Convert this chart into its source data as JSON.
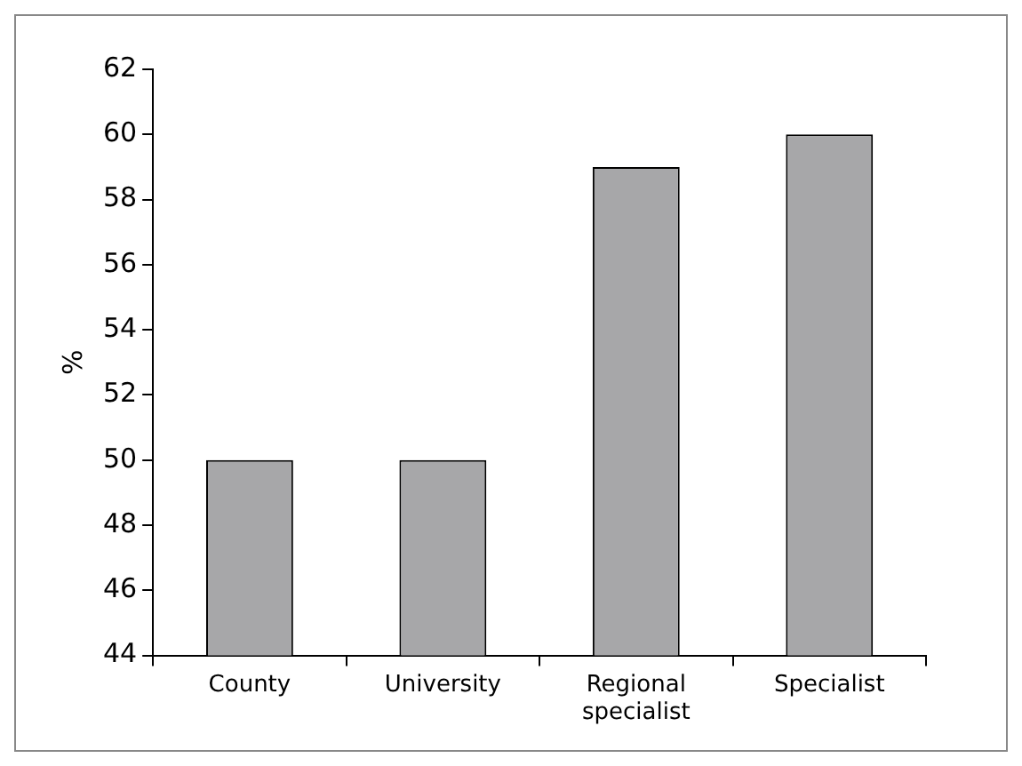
{
  "chart_data": {
    "type": "bar",
    "ylabel": "%",
    "categories": [
      "County",
      "University",
      "Regional specialist",
      "Specialist"
    ],
    "values": [
      50,
      50,
      59,
      60
    ],
    "color": "#a7a7a9",
    "ylim": [
      44,
      62
    ],
    "yticks": [
      44,
      46,
      48,
      50,
      52,
      54,
      56,
      58,
      60,
      62
    ],
    "grid": false,
    "legend": false
  }
}
